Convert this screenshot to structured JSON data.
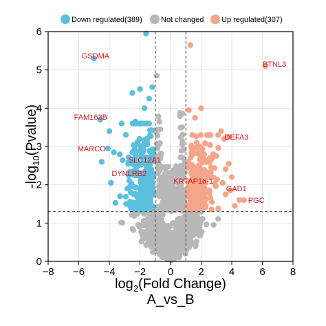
{
  "chart_data": {
    "type": "scatter",
    "subtitle": "A_vs_B",
    "xlim": [
      -8,
      8
    ],
    "ylim": [
      0,
      6
    ],
    "x_ticks": [
      -8,
      -6,
      -4,
      -2,
      0,
      2,
      4,
      6,
      8
    ],
    "y_ticks": [
      0,
      1,
      2,
      3,
      4,
      5,
      6
    ],
    "grid": true,
    "legend_position": "top",
    "thresholds": {
      "x": [
        -1,
        1
      ],
      "y": 1.3
    },
    "legend": [
      {
        "name": "Down regulated(389)",
        "color": "#5bc0de"
      },
      {
        "name": "Not changed",
        "color": "#b8b8b8"
      },
      {
        "name": "Up regulated(307)",
        "color": "#f4a58a"
      }
    ],
    "labeled_genes": [
      {
        "gene": "GSDMA",
        "x": -5.0,
        "y": 5.3,
        "group": "down"
      },
      {
        "gene": "FAM163B",
        "x": -4.6,
        "y": 3.7,
        "group": "down"
      },
      {
        "gene": "MARCO",
        "x": -4.1,
        "y": 2.95,
        "group": "down"
      },
      {
        "gene": "SLC12A1",
        "x": -2.3,
        "y": 2.65,
        "group": "down"
      },
      {
        "gene": "DYNLRB2",
        "x": -2.5,
        "y": 2.3,
        "group": "down"
      },
      {
        "gene": "BTNL3",
        "x": 6.2,
        "y": 5.1,
        "group": "up"
      },
      {
        "gene": "DEFA3",
        "x": 3.8,
        "y": 3.25,
        "group": "up"
      },
      {
        "gene": "KRTAP16-1",
        "x": 1.9,
        "y": 2.1,
        "group": "up"
      },
      {
        "gene": "GAD1",
        "x": 3.9,
        "y": 1.85,
        "group": "up"
      },
      {
        "gene": "PGC",
        "x": 4.8,
        "y": 1.6,
        "group": "up"
      }
    ],
    "outlier_points": [
      {
        "x": -1.6,
        "y": 5.95,
        "group": "down"
      },
      {
        "x": 1.3,
        "y": 5.65,
        "group": "up"
      },
      {
        "x": -0.9,
        "y": 4.85,
        "group": "nc"
      },
      {
        "x": -1.2,
        "y": 4.55,
        "group": "down"
      },
      {
        "x": -2.0,
        "y": 4.5,
        "group": "down"
      },
      {
        "x": -1.4,
        "y": 4.25,
        "group": "down"
      },
      {
        "x": -2.5,
        "y": 4.4,
        "group": "down"
      },
      {
        "x": -1.7,
        "y": 4.0,
        "group": "down"
      },
      {
        "x": 2.0,
        "y": 4.0,
        "group": "up"
      },
      {
        "x": 1.2,
        "y": 3.95,
        "group": "up"
      },
      {
        "x": 1.6,
        "y": 3.75,
        "group": "up"
      },
      {
        "x": -3.2,
        "y": 3.6,
        "group": "down"
      },
      {
        "x": -2.3,
        "y": 3.65,
        "group": "down"
      },
      {
        "x": -4.0,
        "y": 3.4,
        "group": "down"
      },
      {
        "x": 3.3,
        "y": 3.4,
        "group": "up"
      },
      {
        "x": 2.5,
        "y": 3.3,
        "group": "up"
      },
      {
        "x": 3.5,
        "y": 3.2,
        "group": "up"
      },
      {
        "x": -3.7,
        "y": 2.85,
        "group": "down"
      },
      {
        "x": -4.5,
        "y": 2.6,
        "group": "down"
      },
      {
        "x": 3.0,
        "y": 2.75,
        "group": "up"
      },
      {
        "x": 3.8,
        "y": 2.55,
        "group": "up"
      },
      {
        "x": 4.0,
        "y": 2.2,
        "group": "up"
      },
      {
        "x": 4.5,
        "y": 1.6,
        "group": "up"
      },
      {
        "x": -3.9,
        "y": 2.05,
        "group": "down"
      },
      {
        "x": 3.4,
        "y": 2.05,
        "group": "up"
      },
      {
        "x": 3.6,
        "y": 1.75,
        "group": "up"
      },
      {
        "x": -3.3,
        "y": 1.7,
        "group": "down"
      },
      {
        "x": -2.9,
        "y": 1.5,
        "group": "down"
      },
      {
        "x": 2.7,
        "y": 1.55,
        "group": "up"
      },
      {
        "x": 4.2,
        "y": 1.45,
        "group": "up"
      }
    ]
  }
}
